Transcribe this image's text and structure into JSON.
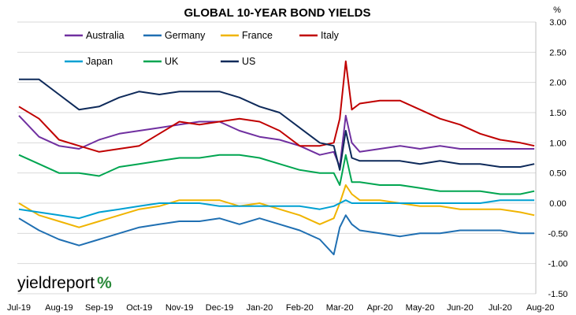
{
  "chart_data": {
    "type": "line",
    "title": "GLOBAL 10-YEAR BOND YIELDS",
    "unit_label": "%",
    "xlabel": "",
    "ylabel": "",
    "x_ticks": [
      "Jul-19",
      "Aug-19",
      "Sep-19",
      "Oct-19",
      "Nov-19",
      "Dec-19",
      "Jan-20",
      "Feb-20",
      "Mar-20",
      "Apr-20",
      "May-20",
      "Jun-20",
      "Jul-20",
      "Aug-20"
    ],
    "y_ticks": [
      "3.00",
      "2.50",
      "2.00",
      "1.50",
      "1.00",
      "0.50",
      "0.00",
      "-0.50",
      "-1.00",
      "-1.50"
    ],
    "ylim": [
      -1.5,
      3.0
    ],
    "y_axis_side": "right",
    "grid": "horizontal",
    "legend_position": "top-left",
    "x": [
      0,
      0.5,
      1,
      1.5,
      2,
      2.5,
      3,
      3.5,
      4,
      4.5,
      5,
      5.5,
      6,
      6.5,
      7,
      7.5,
      7.85,
      8,
      8.15,
      8.3,
      8.5,
      9,
      9.5,
      10,
      10.5,
      11,
      11.5,
      12,
      12.5,
      12.85
    ],
    "series": [
      {
        "name": "Australia",
        "color": "#7030a0",
        "values": [
          1.45,
          1.1,
          0.95,
          0.9,
          1.05,
          1.15,
          1.2,
          1.25,
          1.3,
          1.35,
          1.35,
          1.2,
          1.1,
          1.05,
          0.95,
          0.8,
          0.85,
          0.6,
          1.45,
          1.0,
          0.85,
          0.9,
          0.95,
          0.9,
          0.95,
          0.9,
          0.9,
          0.9,
          0.9,
          0.9
        ]
      },
      {
        "name": "Germany",
        "color": "#1f6fb2",
        "values": [
          -0.25,
          -0.45,
          -0.6,
          -0.7,
          -0.6,
          -0.5,
          -0.4,
          -0.35,
          -0.3,
          -0.3,
          -0.25,
          -0.35,
          -0.25,
          -0.35,
          -0.45,
          -0.6,
          -0.85,
          -0.4,
          -0.2,
          -0.35,
          -0.45,
          -0.5,
          -0.55,
          -0.5,
          -0.5,
          -0.45,
          -0.45,
          -0.45,
          -0.5,
          -0.5
        ]
      },
      {
        "name": "France",
        "color": "#f0b400",
        "values": [
          0.0,
          -0.2,
          -0.3,
          -0.4,
          -0.3,
          -0.2,
          -0.1,
          -0.05,
          0.05,
          0.05,
          0.05,
          -0.05,
          0.0,
          -0.1,
          -0.2,
          -0.35,
          -0.25,
          0.0,
          0.3,
          0.15,
          0.05,
          0.05,
          0.0,
          -0.05,
          -0.05,
          -0.1,
          -0.1,
          -0.1,
          -0.15,
          -0.2
        ]
      },
      {
        "name": "Italy",
        "color": "#c00000",
        "values": [
          1.6,
          1.4,
          1.05,
          0.95,
          0.85,
          0.9,
          0.95,
          1.15,
          1.35,
          1.3,
          1.35,
          1.4,
          1.35,
          1.2,
          0.95,
          0.95,
          1.0,
          1.4,
          2.35,
          1.55,
          1.65,
          1.7,
          1.7,
          1.55,
          1.4,
          1.3,
          1.15,
          1.05,
          1.0,
          0.95
        ]
      },
      {
        "name": "Japan",
        "color": "#00a0d2",
        "values": [
          -0.1,
          -0.15,
          -0.2,
          -0.25,
          -0.15,
          -0.1,
          -0.05,
          0.0,
          0.0,
          0.0,
          -0.05,
          -0.05,
          -0.05,
          -0.05,
          -0.05,
          -0.1,
          -0.05,
          0.0,
          0.05,
          0.0,
          0.0,
          0.0,
          0.0,
          0.0,
          0.0,
          0.0,
          0.0,
          0.05,
          0.05,
          0.05
        ]
      },
      {
        "name": "UK",
        "color": "#00a550",
        "values": [
          0.8,
          0.65,
          0.5,
          0.5,
          0.45,
          0.6,
          0.65,
          0.7,
          0.75,
          0.75,
          0.8,
          0.8,
          0.75,
          0.65,
          0.55,
          0.5,
          0.5,
          0.3,
          0.8,
          0.35,
          0.35,
          0.3,
          0.3,
          0.25,
          0.2,
          0.2,
          0.2,
          0.15,
          0.15,
          0.2
        ]
      },
      {
        "name": "US",
        "color": "#0e2a5a",
        "values": [
          2.05,
          2.05,
          1.8,
          1.55,
          1.6,
          1.75,
          1.85,
          1.8,
          1.85,
          1.85,
          1.85,
          1.75,
          1.6,
          1.5,
          1.25,
          1.0,
          0.95,
          0.55,
          1.2,
          0.75,
          0.7,
          0.7,
          0.7,
          0.65,
          0.7,
          0.65,
          0.65,
          0.6,
          0.6,
          0.65
        ]
      }
    ]
  },
  "logo": {
    "main": "yieldreport",
    "pct": "%",
    "pct_color": "#2a8a3a",
    "pct_accent": "#c00000"
  }
}
